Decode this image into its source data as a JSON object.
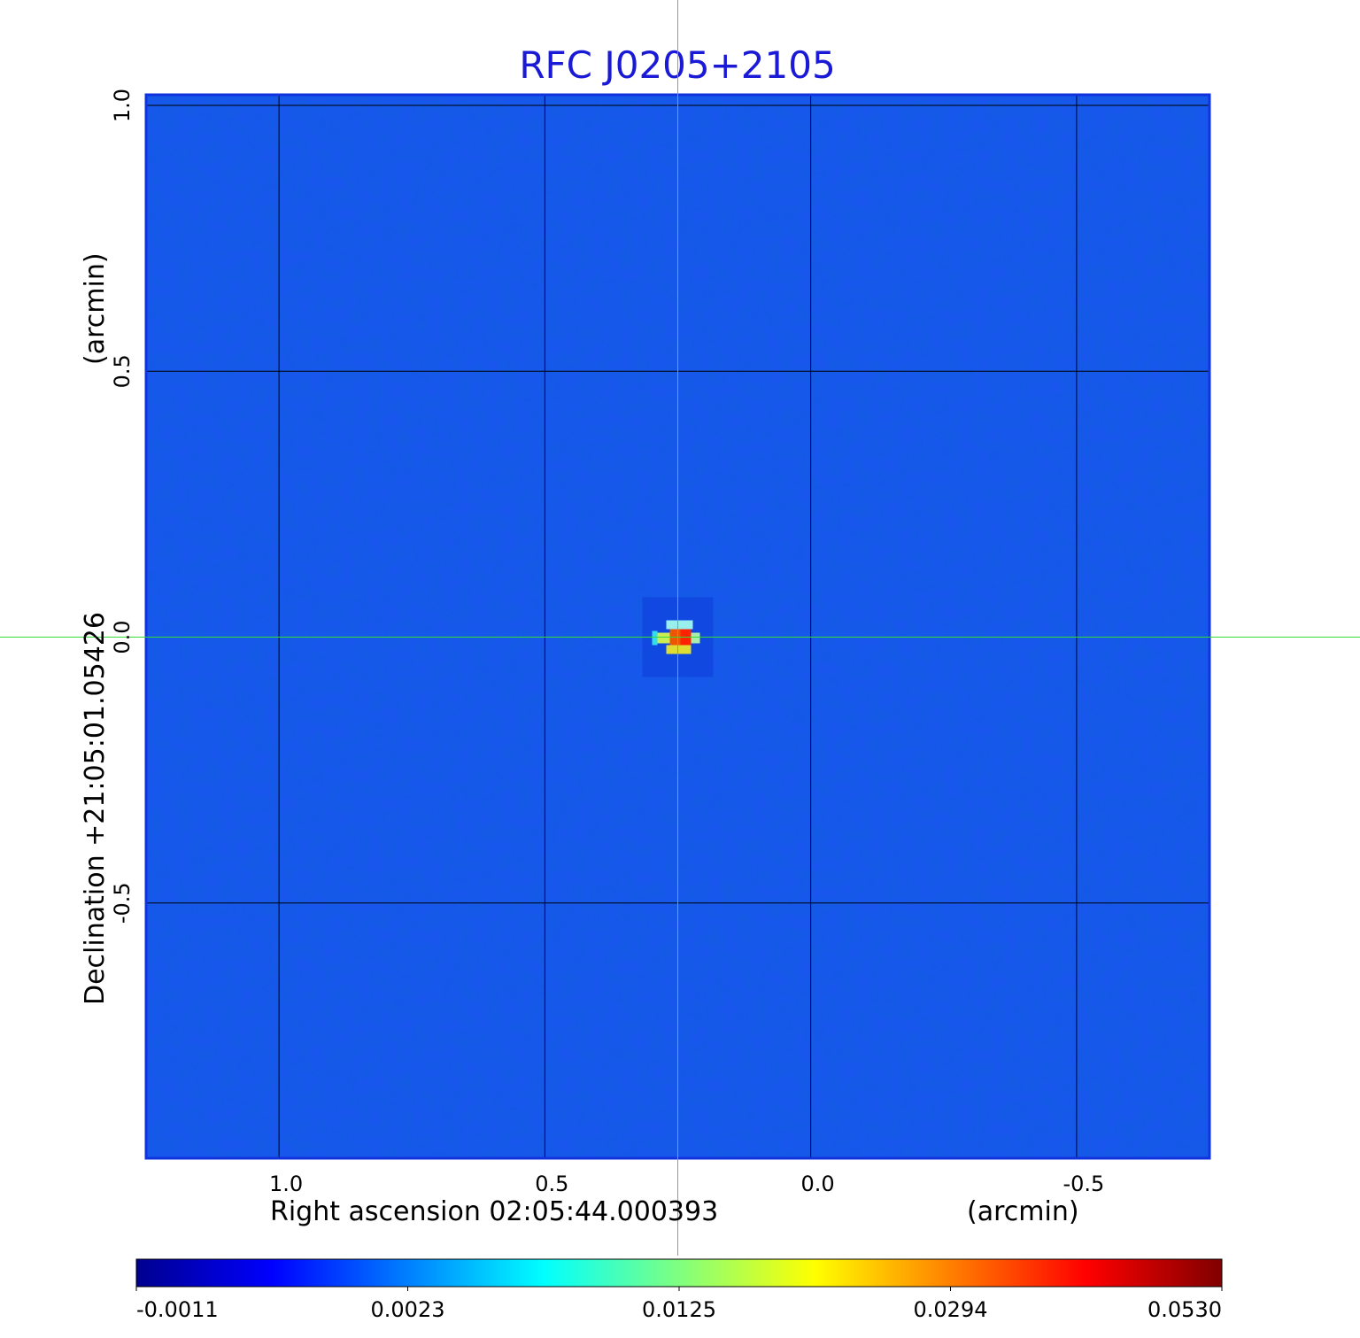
{
  "chart_data": {
    "type": "heatmap",
    "title": "RFC J0205+2105",
    "xlabel": "Right ascension  02:05:44.000393",
    "xlabel_unit": "(arcmin)",
    "ylabel": "Declination  +21:05:01.05426",
    "ylabel_unit": "(arcmin)",
    "x_ticks": [
      "1.0",
      "0.5",
      "0.0",
      "-0.5"
    ],
    "x_tick_values": [
      1.0,
      0.5,
      0.0,
      -0.5
    ],
    "y_ticks": [
      "1.0",
      "0.5",
      "0.0",
      "-0.5"
    ],
    "y_tick_values": [
      1.0,
      0.5,
      0.0,
      -0.5
    ],
    "xlim": [
      1.25,
      -0.75
    ],
    "ylim": [
      -0.98,
      1.02
    ],
    "grid": true,
    "crosshair": {
      "x": 0.25,
      "y": 0.0,
      "color": "#33dd33"
    },
    "source_peak": {
      "x": 0.25,
      "y": 0.0,
      "value": 0.053
    },
    "colormap": "jet",
    "background_color": "#1a55f0",
    "colorbar": {
      "position": "bottom",
      "tick_labels": [
        "-0.0011",
        "0.0023",
        "0.0125",
        "0.0294",
        "0.0530"
      ],
      "min": -0.0011,
      "max": 0.053
    }
  }
}
